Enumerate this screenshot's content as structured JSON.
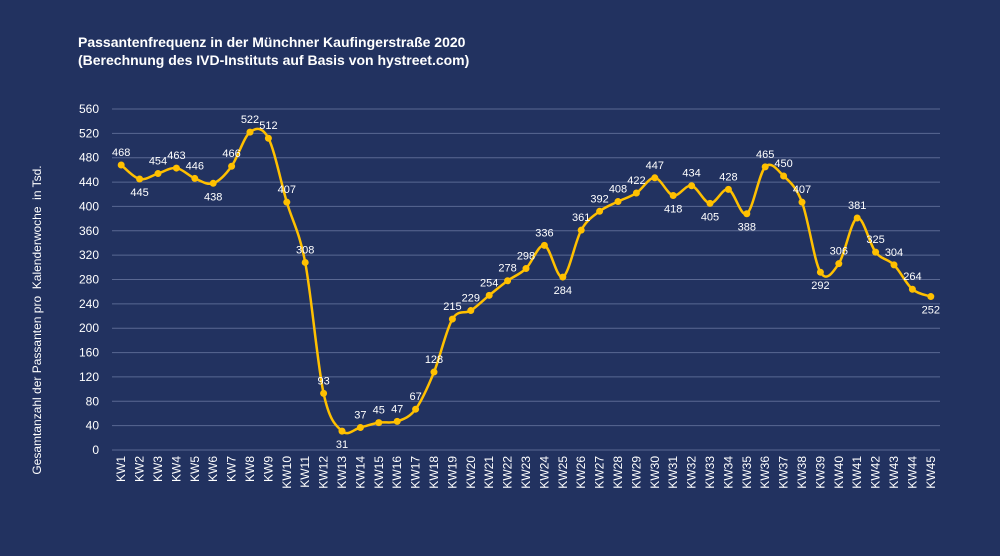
{
  "chart_data": {
    "type": "line",
    "title": "Passantenfrequenz in der Münchner Kaufingerstraße 2020",
    "subtitle": "(Berechnung des IVD-Instituts auf Basis von hystreet.com)",
    "ylabel": "Gesamtanzahl der Passanten pro  Kalenderwoche  in Tsd.",
    "xlabel": "",
    "ylim": [
      0,
      560
    ],
    "yticks": [
      0,
      40,
      80,
      120,
      160,
      200,
      240,
      280,
      320,
      360,
      400,
      440,
      480,
      520,
      560
    ],
    "grid": true,
    "categories": [
      "KW1",
      "KW2",
      "KW3",
      "KW4",
      "KW5",
      "KW6",
      "KW7",
      "KW8",
      "KW9",
      "KW10",
      "KW11",
      "KW12",
      "KW13",
      "KW14",
      "KW15",
      "KW16",
      "KW17",
      "KW18",
      "KW19",
      "KW20",
      "KW21",
      "KW22",
      "KW23",
      "KW24",
      "KW25",
      "KW26",
      "KW27",
      "KW28",
      "KW29",
      "KW30",
      "KW31",
      "KW32",
      "KW33",
      "KW34",
      "KW35",
      "KW36",
      "KW37",
      "KW38",
      "KW39",
      "KW40",
      "KW41",
      "KW42",
      "KW43",
      "KW44",
      "KW45"
    ],
    "series": [
      {
        "values": [
          468,
          445,
          454,
          463,
          446,
          438,
          466,
          522,
          512,
          407,
          308,
          93,
          31,
          37,
          45,
          47,
          67,
          128,
          215,
          229,
          254,
          278,
          298,
          336,
          284,
          361,
          392,
          408,
          422,
          447,
          418,
          434,
          405,
          428,
          388,
          465,
          450,
          407,
          292,
          306,
          381,
          325,
          304,
          264,
          252
        ],
        "color": "#FFC000"
      }
    ]
  }
}
